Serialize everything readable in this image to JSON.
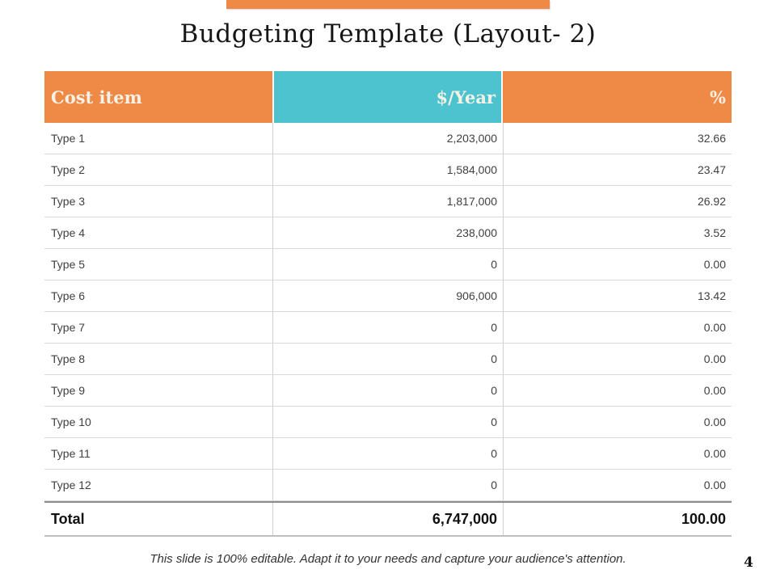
{
  "slide": {
    "title": "Budgeting Template (Layout- 2)",
    "footer_note": "This slide is 100% editable. Adapt it to your needs and capture your audience's attention.",
    "page_number": "4"
  },
  "colors": {
    "orange": "#EF8A46",
    "teal": "#4DC3CF",
    "header_text": "#F6F1E6",
    "body_text": "#404040"
  },
  "table": {
    "headers": [
      "Cost item",
      "$/Year",
      "%"
    ],
    "rows": [
      {
        "item": "Type 1",
        "year": "2,203,000",
        "pct": "32.66"
      },
      {
        "item": "Type 2",
        "year": "1,584,000",
        "pct": "23.47"
      },
      {
        "item": "Type 3",
        "year": "1,817,000",
        "pct": "26.92"
      },
      {
        "item": "Type 4",
        "year": "238,000",
        "pct": "3.52"
      },
      {
        "item": "Type 5",
        "year": "0",
        "pct": "0.00"
      },
      {
        "item": "Type 6",
        "year": "906,000",
        "pct": "13.42"
      },
      {
        "item": "Type 7",
        "year": "0",
        "pct": "0.00"
      },
      {
        "item": "Type 8",
        "year": "0",
        "pct": "0.00"
      },
      {
        "item": "Type 9",
        "year": "0",
        "pct": "0.00"
      },
      {
        "item": "Type 10",
        "year": "0",
        "pct": "0.00"
      },
      {
        "item": "Type 11",
        "year": "0",
        "pct": "0.00"
      },
      {
        "item": "Type 12",
        "year": "0",
        "pct": "0.00"
      }
    ],
    "total": {
      "item": "Total",
      "year": "6,747,000",
      "pct": "100.00"
    }
  }
}
